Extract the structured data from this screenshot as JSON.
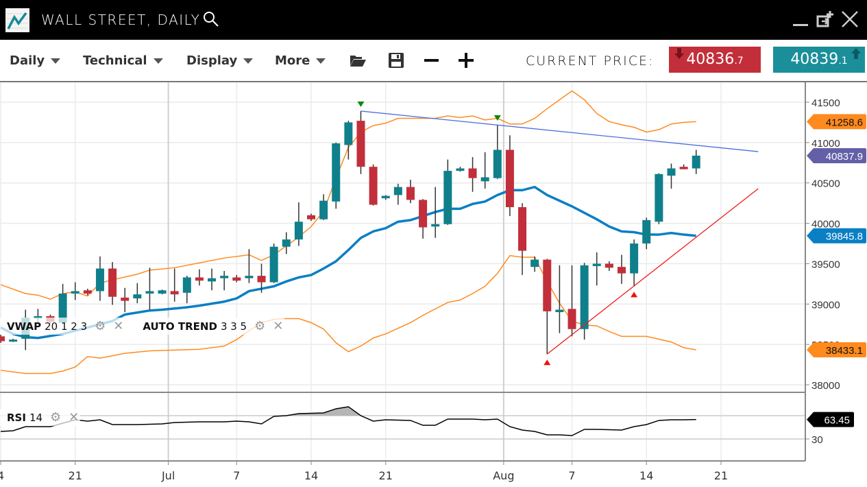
{
  "window": {
    "title": "WALL STREET, DAILY",
    "icons": [
      "chart-logo-icon",
      "search-icon",
      "minimize-icon",
      "popout-icon",
      "close-icon"
    ]
  },
  "toolbar": {
    "menus": [
      {
        "label": "Daily"
      },
      {
        "label": "Technical"
      },
      {
        "label": "Display"
      },
      {
        "label": "More"
      }
    ],
    "icons": [
      "folder-open-icon",
      "save-icon",
      "zoom-out-icon",
      "zoom-in-icon"
    ],
    "current_price_label": "CURRENT PRICE:",
    "bid": {
      "main": "40836",
      "fraction": ".7",
      "color": "#c22f3a",
      "direction": "down"
    },
    "ask": {
      "main": "40839",
      "fraction": ".1",
      "color": "#1a8f9a",
      "direction": "up"
    }
  },
  "legends": {
    "vwap": {
      "name": "VWAP",
      "params": "20 1 2 3"
    },
    "auto_trend": {
      "name": "AUTO TREND",
      "params": "3 3 5"
    },
    "rsi": {
      "name": "RSI",
      "params": "14"
    }
  },
  "chart_data": {
    "type": "candlestick",
    "colors": {
      "up": "#0f808b",
      "down": "#c22f3a",
      "bands": "#ff8a1e",
      "vwap": "#0a7fc4",
      "resistance": "#4a6fe0",
      "support": "#f01818",
      "rsi": "#000000"
    },
    "y_ticks": [
      "41500",
      "41000",
      "40500",
      "40000",
      "39500",
      "39000",
      "38500",
      "38000"
    ],
    "ylim": [
      38000,
      41500
    ],
    "x_ticks": [
      {
        "label": "4",
        "index": 0
      },
      {
        "label": "21",
        "index": 6
      },
      {
        "label": "Jul",
        "index": 13.5
      },
      {
        "label": "7",
        "index": 19
      },
      {
        "label": "14",
        "index": 25
      },
      {
        "label": "21",
        "index": 31
      },
      {
        "label": "Aug",
        "index": 40.5
      },
      {
        "label": "7",
        "index": 46
      },
      {
        "label": "14",
        "index": 52
      },
      {
        "label": "21",
        "index": 58
      }
    ],
    "candles_ohlc": [
      [
        38600,
        38620,
        38520,
        38540
      ],
      [
        38540,
        38570,
        38530,
        38560
      ],
      [
        38570,
        38930,
        38430,
        38830
      ],
      [
        38820,
        38940,
        38770,
        38850
      ],
      [
        38850,
        38870,
        38760,
        38780
      ],
      [
        38770,
        39250,
        38760,
        39130
      ],
      [
        39130,
        39270,
        39050,
        39160
      ],
      [
        39170,
        39190,
        39110,
        39130
      ],
      [
        39160,
        39590,
        39040,
        39440
      ],
      [
        39440,
        39520,
        38990,
        39090
      ],
      [
        39080,
        39200,
        38900,
        39040
      ],
      [
        39070,
        39260,
        39010,
        39120
      ],
      [
        39130,
        39450,
        38930,
        39160
      ],
      [
        39130,
        39180,
        39120,
        39170
      ],
      [
        39160,
        39440,
        39030,
        39120
      ],
      [
        39140,
        39350,
        39010,
        39330
      ],
      [
        39330,
        39430,
        39230,
        39290
      ],
      [
        39280,
        39440,
        39170,
        39320
      ],
      [
        39320,
        39410,
        39170,
        39350
      ],
      [
        39330,
        39360,
        39270,
        39290
      ],
      [
        39320,
        39680,
        39260,
        39350
      ],
      [
        39350,
        39500,
        39140,
        39270
      ],
      [
        39270,
        39750,
        39260,
        39710
      ],
      [
        39710,
        39890,
        39620,
        39800
      ],
      [
        39800,
        40260,
        39720,
        40020
      ],
      [
        40100,
        40120,
        40030,
        40050
      ],
      [
        40050,
        40360,
        40040,
        40280
      ],
      [
        40270,
        41000,
        40180,
        40990
      ],
      [
        40970,
        41270,
        40790,
        41250
      ],
      [
        41270,
        41390,
        40610,
        40700
      ],
      [
        40700,
        40730,
        40220,
        40230
      ],
      [
        40310,
        40350,
        40290,
        40340
      ],
      [
        40350,
        40490,
        40230,
        40450
      ],
      [
        40450,
        40540,
        40250,
        40290
      ],
      [
        40290,
        40300,
        39810,
        39950
      ],
      [
        39960,
        40450,
        39820,
        39990
      ],
      [
        39990,
        40790,
        39980,
        40650
      ],
      [
        40650,
        40700,
        40640,
        40680
      ],
      [
        40680,
        40820,
        40390,
        40560
      ],
      [
        40520,
        40880,
        40430,
        40570
      ],
      [
        40560,
        41220,
        40550,
        40910
      ],
      [
        40910,
        41090,
        40090,
        40200
      ],
      [
        40200,
        40250,
        39360,
        39660
      ],
      [
        39460,
        39590,
        39400,
        39550
      ],
      [
        39550,
        39560,
        38380,
        38910
      ],
      [
        38900,
        39480,
        38640,
        38930
      ],
      [
        38940,
        39480,
        38600,
        38690
      ],
      [
        38690,
        39510,
        38560,
        39480
      ],
      [
        39470,
        39640,
        39230,
        39500
      ],
      [
        39500,
        39530,
        39410,
        39450
      ],
      [
        39460,
        39610,
        39250,
        39380
      ],
      [
        39380,
        39800,
        39220,
        39750
      ],
      [
        39750,
        40070,
        39680,
        40040
      ],
      [
        40020,
        40620,
        39990,
        40610
      ],
      [
        40590,
        40740,
        40430,
        40680
      ],
      [
        40700,
        40730,
        40670,
        40670
      ],
      [
        40680,
        40910,
        40610,
        40838
      ]
    ],
    "upper_band": [
      [
        0,
        39240
      ],
      [
        2,
        39130
      ],
      [
        3,
        39110
      ],
      [
        4,
        39060
      ],
      [
        5,
        39130
      ],
      [
        6,
        39150
      ],
      [
        7,
        39100
      ],
      [
        8,
        39260
      ],
      [
        9,
        39300
      ],
      [
        11,
        39370
      ],
      [
        12,
        39420
      ],
      [
        14,
        39450
      ],
      [
        16,
        39510
      ],
      [
        18,
        39570
      ],
      [
        20,
        39610
      ],
      [
        21,
        39540
      ],
      [
        22,
        39610
      ],
      [
        23,
        39720
      ],
      [
        24,
        39830
      ],
      [
        25,
        39960
      ],
      [
        26,
        40150
      ],
      [
        27,
        40560
      ],
      [
        28,
        40940
      ],
      [
        29,
        41130
      ],
      [
        30,
        41210
      ],
      [
        31,
        41240
      ],
      [
        32,
        41300
      ],
      [
        35,
        41300
      ],
      [
        36,
        41330
      ],
      [
        37,
        41310
      ],
      [
        38,
        41330
      ],
      [
        39,
        41280
      ],
      [
        40,
        41300
      ],
      [
        41,
        41230
      ],
      [
        42,
        41230
      ],
      [
        43,
        41300
      ],
      [
        44,
        41420
      ],
      [
        45,
        41530
      ],
      [
        46,
        41640
      ],
      [
        47,
        41530
      ],
      [
        48,
        41360
      ],
      [
        49,
        41260
      ],
      [
        50,
        41220
      ],
      [
        51,
        41190
      ],
      [
        52,
        41130
      ],
      [
        53,
        41160
      ],
      [
        54,
        41230
      ],
      [
        55,
        41250
      ],
      [
        56,
        41258.6
      ]
    ],
    "lower_band": [
      [
        0,
        38180
      ],
      [
        2,
        38140
      ],
      [
        4,
        38140
      ],
      [
        5,
        38170
      ],
      [
        6,
        38220
      ],
      [
        7,
        38350
      ],
      [
        8,
        38330
      ],
      [
        10,
        38390
      ],
      [
        12,
        38420
      ],
      [
        14,
        38430
      ],
      [
        16,
        38440
      ],
      [
        18,
        38480
      ],
      [
        19,
        38560
      ],
      [
        20,
        38670
      ],
      [
        21,
        38770
      ],
      [
        22,
        38810
      ],
      [
        23,
        38820
      ],
      [
        24,
        38820
      ],
      [
        25,
        38770
      ],
      [
        26,
        38690
      ],
      [
        27,
        38520
      ],
      [
        28,
        38410
      ],
      [
        29,
        38480
      ],
      [
        30,
        38580
      ],
      [
        31,
        38630
      ],
      [
        32,
        38700
      ],
      [
        33,
        38770
      ],
      [
        34,
        38860
      ],
      [
        35,
        38940
      ],
      [
        36,
        39020
      ],
      [
        37,
        39050
      ],
      [
        38,
        39130
      ],
      [
        39,
        39220
      ],
      [
        40,
        39380
      ],
      [
        41,
        39600
      ],
      [
        42,
        39580
      ],
      [
        43,
        39580
      ],
      [
        44,
        39280
      ],
      [
        45,
        39010
      ],
      [
        46,
        38790
      ],
      [
        47,
        38740
      ],
      [
        48,
        38730
      ],
      [
        49,
        38660
      ],
      [
        50,
        38600
      ],
      [
        52,
        38600
      ],
      [
        54,
        38530
      ],
      [
        55,
        38460
      ],
      [
        56,
        38433.1
      ]
    ],
    "vwap": [
      [
        0,
        38710
      ],
      [
        1,
        38630
      ],
      [
        2,
        38590
      ],
      [
        3,
        38580
      ],
      [
        5,
        38630
      ],
      [
        7,
        38710
      ],
      [
        9,
        38790
      ],
      [
        10,
        38870
      ],
      [
        12,
        38920
      ],
      [
        13,
        38930
      ],
      [
        15,
        38960
      ],
      [
        16,
        38980
      ],
      [
        18,
        39030
      ],
      [
        19,
        39070
      ],
      [
        20,
        39160
      ],
      [
        21,
        39190
      ],
      [
        22,
        39220
      ],
      [
        23,
        39280
      ],
      [
        24,
        39330
      ],
      [
        25,
        39360
      ],
      [
        26,
        39440
      ],
      [
        27,
        39530
      ],
      [
        28,
        39670
      ],
      [
        29,
        39820
      ],
      [
        30,
        39900
      ],
      [
        31,
        39940
      ],
      [
        32,
        40020
      ],
      [
        33,
        40040
      ],
      [
        34,
        40090
      ],
      [
        35,
        40140
      ],
      [
        36,
        40180
      ],
      [
        37,
        40180
      ],
      [
        38,
        40240
      ],
      [
        39,
        40270
      ],
      [
        40,
        40350
      ],
      [
        41,
        40410
      ],
      [
        42,
        40410
      ],
      [
        43,
        40450
      ],
      [
        44,
        40350
      ],
      [
        45,
        40280
      ],
      [
        46,
        40210
      ],
      [
        47,
        40130
      ],
      [
        48,
        40050
      ],
      [
        49,
        39960
      ],
      [
        50,
        39900
      ],
      [
        51,
        39890
      ],
      [
        52,
        39860
      ],
      [
        53,
        39860
      ],
      [
        54,
        39880
      ],
      [
        55,
        39860
      ],
      [
        56,
        39845.8
      ]
    ],
    "resistance_line": [
      [
        29,
        41390
      ],
      [
        61,
        40888
      ]
    ],
    "support_line": [
      [
        44,
        38380
      ],
      [
        61,
        40430
      ]
    ],
    "peak_markers": [
      [
        29,
        41390
      ],
      [
        40,
        41220
      ]
    ],
    "trough_markers": [
      [
        44,
        38380
      ],
      [
        51,
        39220
      ]
    ],
    "price_labels": [
      {
        "value": "41258.6",
        "price": 41258.6,
        "color": "#ff8a1e",
        "text_color": "#111"
      },
      {
        "value": "40837.9",
        "price": 40837.9,
        "color": "#6360a8",
        "text_color": "#fff"
      },
      {
        "value": "39845.8",
        "price": 39845.8,
        "color": "#0a7fc4",
        "text_color": "#fff"
      },
      {
        "value": "38433.1",
        "price": 38433.1,
        "color": "#ff8a1e",
        "text_color": "#111"
      }
    ],
    "rsi": {
      "levels": [
        30,
        70
      ],
      "tick_labels": [
        "30"
      ],
      "last_label": "63.45",
      "values": [
        [
          0,
          42.9
        ],
        [
          1,
          44.1
        ],
        [
          2,
          51.2
        ],
        [
          4,
          51.2
        ],
        [
          5,
          57.1
        ],
        [
          6,
          62.9
        ],
        [
          7,
          60.6
        ],
        [
          8,
          62.9
        ],
        [
          9,
          54.7
        ],
        [
          11,
          54.7
        ],
        [
          13,
          55.9
        ],
        [
          14,
          58.2
        ],
        [
          16,
          59.4
        ],
        [
          18,
          59.4
        ],
        [
          19,
          60.6
        ],
        [
          20,
          59.4
        ],
        [
          21,
          55.9
        ],
        [
          22,
          68.8
        ],
        [
          23,
          70
        ],
        [
          24,
          73.5
        ],
        [
          26,
          74.7
        ],
        [
          27,
          81.8
        ],
        [
          28,
          85.3
        ],
        [
          29,
          70
        ],
        [
          30,
          60.6
        ],
        [
          31,
          62.9
        ],
        [
          33,
          61.8
        ],
        [
          34,
          53.5
        ],
        [
          35,
          53.5
        ],
        [
          36,
          64.1
        ],
        [
          38,
          64.1
        ],
        [
          39,
          62.9
        ],
        [
          40,
          64.1
        ],
        [
          41,
          51.2
        ],
        [
          42,
          45.3
        ],
        [
          43,
          42.9
        ],
        [
          44,
          37.1
        ],
        [
          45,
          37.1
        ],
        [
          46,
          35.9
        ],
        [
          47,
          46.5
        ],
        [
          48,
          46.5
        ],
        [
          50,
          45.3
        ],
        [
          51,
          51.2
        ],
        [
          52,
          54.7
        ],
        [
          53,
          61.8
        ],
        [
          54,
          62.9
        ],
        [
          55,
          62.9
        ],
        [
          56,
          63.45
        ]
      ]
    }
  }
}
